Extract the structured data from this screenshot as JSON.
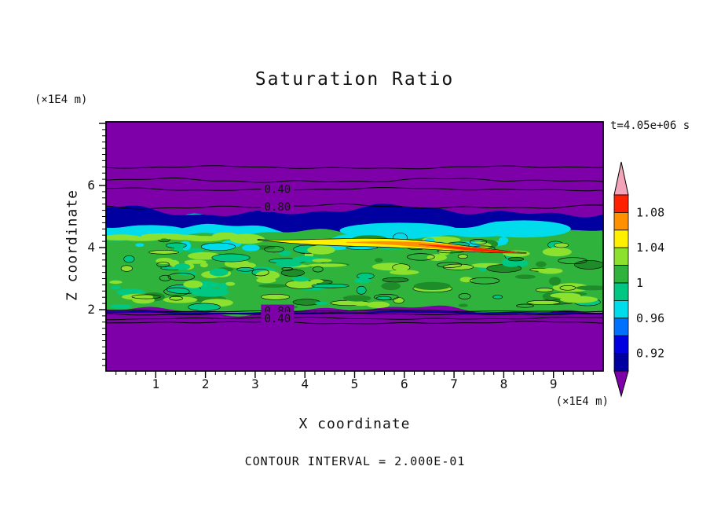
{
  "chart_data": {
    "type": "contour",
    "title": "Saturation Ratio",
    "time_label": "t=4.05e+06 s",
    "xlabel": "X coordinate",
    "ylabel": "Z coordinate",
    "x_unit_label": "(×1E4 m)",
    "y_unit_label": "(×1E4 m)",
    "footer": "CONTOUR INTERVAL = 2.000E-01",
    "xlim": [
      0,
      10
    ],
    "zlim": [
      0,
      8.05
    ],
    "x_ticks": [
      1,
      2,
      3,
      4,
      5,
      6,
      7,
      8,
      9
    ],
    "z_ticks": [
      2,
      4,
      6
    ],
    "colors": {
      "purple": "#7D00A8",
      "navy": "#0000A0",
      "mediumblue": "#0000E0",
      "blue": "#0070FF",
      "cyan": "#00DCEC",
      "teal": "#00C882",
      "green": "#2FB33C",
      "darkgreen": "#1E8C28",
      "yellowgreen": "#8CE02E",
      "yellow": "#FFF000",
      "orange": "#FF9000",
      "red": "#FF2000",
      "pink": "#F2A4B8"
    },
    "field": {
      "layers": [
        {
          "name": "cyan-band",
          "z0": 4.25,
          "z1": 4.8,
          "color": "cyan",
          "amp": 6
        },
        {
          "name": "navy-band",
          "z0": 4.6,
          "z1": 5.18,
          "color": "navy",
          "amp": 5
        },
        {
          "name": "green-field",
          "z0": 1.98,
          "z1": 4.42,
          "color": "green",
          "amp": 4
        }
      ],
      "cyan_patches": [
        {
          "x": 0.9,
          "z": 4.5,
          "w": 1.5,
          "h": 0.45
        },
        {
          "x": 5.9,
          "z": 4.55,
          "w": 2.4,
          "h": 0.5
        },
        {
          "x": 8.4,
          "z": 4.6,
          "w": 1.9,
          "h": 0.55
        }
      ],
      "speckles": {
        "count": 150,
        "seed": 7,
        "zmin": 2.08,
        "zmax": 4.28,
        "palette": [
          "yellowgreen",
          "teal",
          "darkgreen",
          "cyan"
        ],
        "weights": [
          0.38,
          0.3,
          0.2,
          0.12
        ]
      },
      "top_band_blobs": {
        "count": 7,
        "x0": 0.3,
        "dx": 0.42,
        "z": 4.33,
        "color": "yellowgreen"
      },
      "streak": {
        "x0": 3.05,
        "z0": 4.3,
        "x1": 8.45,
        "z1": 3.88,
        "layers": [
          {
            "color": "yellow",
            "halfwidth": 5.5,
            "start": 0
          },
          {
            "color": "orange",
            "halfwidth": 3.2,
            "start": 0.33
          },
          {
            "color": "red",
            "halfwidth": 1.8,
            "start": 0.6
          }
        ]
      },
      "contour_lines_top": [
        {
          "z": 6.58,
          "amp": 1.2
        },
        {
          "z": 6.16,
          "amp": 1.8
        },
        {
          "z": 5.88,
          "amp": 1.2,
          "label": "0.40"
        },
        {
          "z": 5.32,
          "amp": 1.8,
          "label": "0.80"
        }
      ],
      "bottom_edge_line": {
        "z": 1.9,
        "color": "navy"
      },
      "contour_lines_bottom": [
        {
          "z": 1.96,
          "amp": 0.8,
          "label": "0.80"
        },
        {
          "z": 1.86,
          "amp": 0.8
        },
        {
          "z": 1.72,
          "amp": 0.9,
          "label": "0.40"
        },
        {
          "z": 1.58,
          "amp": 1.0
        }
      ],
      "label_x": 3.45
    },
    "colorbar": {
      "over_color": "pink",
      "under_color": "purple",
      "bands": [
        "red",
        "orange",
        "yellow",
        "yellowgreen",
        "green",
        "teal",
        "cyan",
        "blue",
        "mediumblue",
        "navy"
      ],
      "boundary_labels": [
        {
          "index": 1,
          "text": "1.08"
        },
        {
          "index": 3,
          "text": "1.04"
        },
        {
          "index": 5,
          "text": "1"
        },
        {
          "index": 7,
          "text": "0.96"
        },
        {
          "index": 9,
          "text": "0.92"
        }
      ]
    }
  }
}
